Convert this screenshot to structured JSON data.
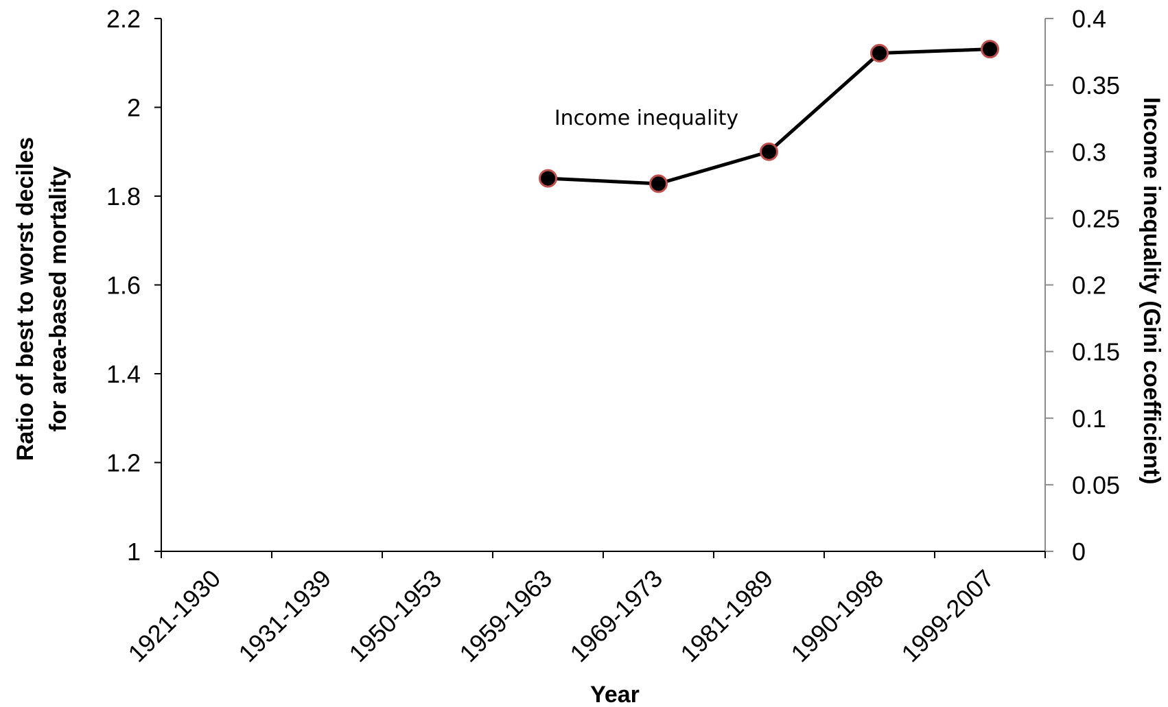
{
  "chart_data": {
    "type": "line",
    "categories": [
      "1921-1930",
      "1931-1939",
      "1950-1953",
      "1959-1963",
      "1969-1973",
      "1981-1989",
      "1990-1998",
      "1999-2007"
    ],
    "xlabel": "Year",
    "ylabel": "Ratio of best to worst deciles for area-based mortality",
    "ylabel_lines": [
      "Ratio of best to worst deciles",
      "for area-based mortality"
    ],
    "ylim": [
      1,
      2.2
    ],
    "yticks": [
      "1",
      "1.2",
      "1.4",
      "1.6",
      "1.8",
      "2",
      "2.2"
    ],
    "y2label": "Income inequality (Gini coefficient)",
    "y2lim": [
      0,
      0.4
    ],
    "y2ticks": [
      "0",
      "0.05",
      "0.1",
      "0.15",
      "0.2",
      "0.25",
      "0.3",
      "0.35",
      "0.4"
    ],
    "series": [
      {
        "name": "Income inequality",
        "axis": "right",
        "values": [
          null,
          null,
          null,
          0.28,
          0.276,
          0.3,
          0.374,
          0.377
        ],
        "line_color": "#000000",
        "marker_fill": "#000000",
        "marker_edge": "#c0504d"
      }
    ],
    "annotations": [
      {
        "text": "Income inequality"
      }
    ],
    "grid": false,
    "legend": "none"
  }
}
